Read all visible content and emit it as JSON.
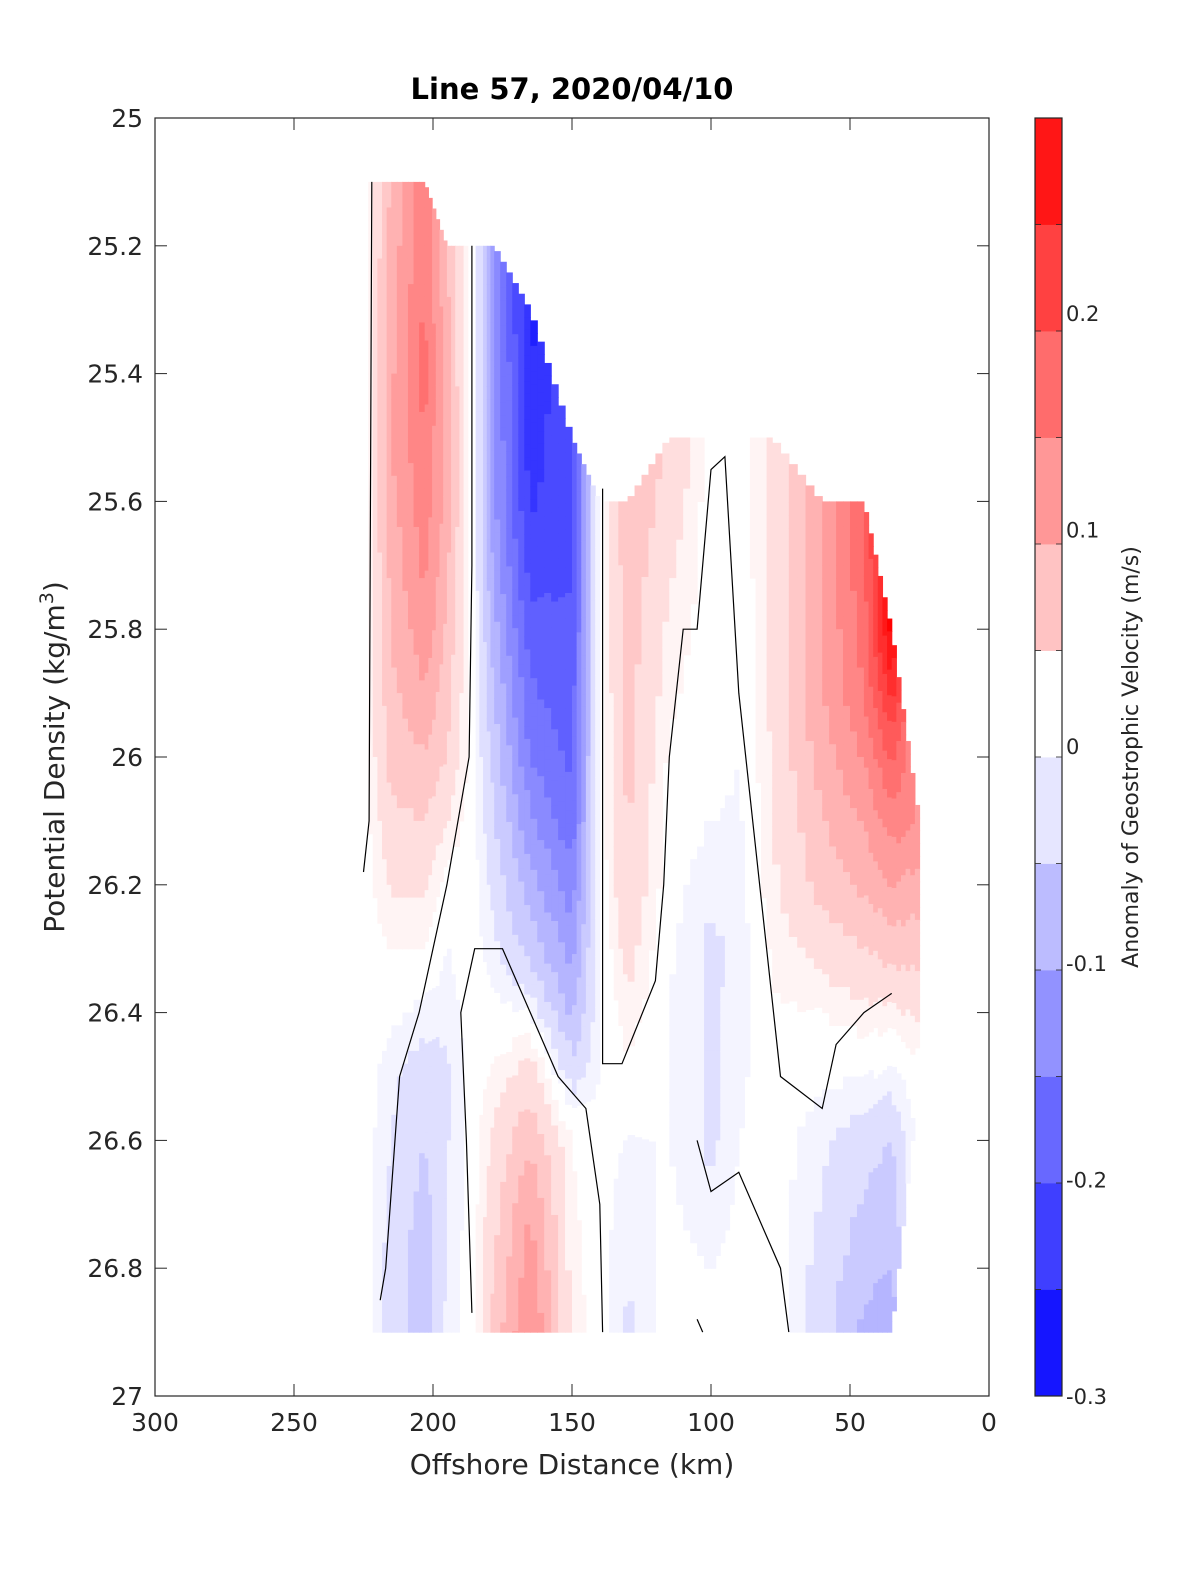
{
  "chart_data": {
    "type": "heatmap",
    "title": "Line 57, 2020/04/10",
    "xlabel": "Offshore Distance (km)",
    "ylabel_main": "Potential Density (kg/m",
    "ylabel_sup": "3",
    "ylabel_close": ")",
    "xlim": [
      300,
      0
    ],
    "ylim": [
      25,
      27
    ],
    "x_reversed": true,
    "y_reversed": true,
    "xticks": [
      300,
      250,
      200,
      150,
      100,
      50,
      0
    ],
    "xtick_labels": [
      "300",
      "250",
      "200",
      "150",
      "100",
      "50",
      "0"
    ],
    "yticks": [
      25,
      25.2,
      25.4,
      25.6,
      25.8,
      26,
      26.2,
      26.4,
      26.6,
      26.8,
      27
    ],
    "ytick_labels": [
      "25",
      "25.2",
      "25.4",
      "25.6",
      "25.8",
      "26",
      "26.2",
      "26.4",
      "26.6",
      "26.8",
      "27"
    ],
    "colorbar": {
      "label": "Anomaly of Geostrophic Velocity (m/s)",
      "min": -0.3,
      "max": 0.29,
      "ticks": [
        0.2,
        0.1,
        0,
        -0.1,
        -0.2,
        -0.3
      ],
      "tick_labels": [
        "0.2",
        "0.1",
        "0",
        "-0.1",
        "-0.2",
        "-0.3"
      ],
      "level_step": 0.025,
      "colormap": "blue-white-red",
      "color_negative": "#0000ff",
      "color_zero": "#ffffff",
      "color_positive": "#ff0000"
    },
    "columns": [
      {
        "x": 225,
        "top": 25.1,
        "bottom": 26.9,
        "cells": [
          [
            25.1,
            0
          ],
          [
            26.9,
            0
          ]
        ]
      },
      {
        "x": 215,
        "top": 25.1,
        "bottom": 26.9,
        "cells": [
          [
            25.1,
            0.08
          ],
          [
            25.5,
            0.1
          ],
          [
            26.0,
            0.06
          ],
          [
            26.3,
            0.01
          ],
          [
            26.5,
            -0.02
          ],
          [
            26.9,
            -0.04
          ]
        ]
      },
      {
        "x": 203,
        "top": 25.1,
        "bottom": 26.9,
        "cells": [
          [
            25.1,
            0.14
          ],
          [
            25.4,
            0.16
          ],
          [
            25.8,
            0.12
          ],
          [
            26.1,
            0.05
          ],
          [
            26.3,
            0.01
          ],
          [
            26.5,
            -0.04
          ],
          [
            26.8,
            -0.07
          ],
          [
            26.9,
            -0.06
          ]
        ]
      },
      {
        "x": 195,
        "top": 25.2,
        "bottom": 26.9,
        "cells": [
          [
            25.2,
            0.08
          ],
          [
            25.6,
            0.09
          ],
          [
            26.0,
            0.05
          ],
          [
            26.2,
            0.0
          ],
          [
            26.5,
            -0.03
          ],
          [
            26.9,
            -0.02
          ]
        ]
      },
      {
        "x": 186,
        "top": 25.2,
        "bottom": 26.9,
        "cells": [
          [
            25.2,
            0.0
          ],
          [
            26.0,
            0.0
          ],
          [
            26.6,
            0.0
          ],
          [
            26.9,
            0.0
          ]
        ]
      },
      {
        "x": 178,
        "top": 25.2,
        "bottom": 26.9,
        "cells": [
          [
            25.2,
            -0.12
          ],
          [
            25.6,
            -0.12
          ],
          [
            26.0,
            -0.06
          ],
          [
            26.3,
            -0.02
          ],
          [
            26.6,
            0.03
          ],
          [
            26.9,
            0.06
          ]
        ]
      },
      {
        "x": 165,
        "top": 25.3,
        "bottom": 26.9,
        "cells": [
          [
            25.3,
            -0.26
          ],
          [
            25.6,
            -0.23
          ],
          [
            26.0,
            -0.15
          ],
          [
            26.3,
            -0.06
          ],
          [
            26.5,
            0.04
          ],
          [
            26.7,
            0.1
          ],
          [
            26.9,
            0.13
          ]
        ]
      },
      {
        "x": 150,
        "top": 25.5,
        "bottom": 26.9,
        "cells": [
          [
            25.5,
            -0.2
          ],
          [
            25.8,
            -0.2
          ],
          [
            26.1,
            -0.17
          ],
          [
            26.4,
            -0.08
          ],
          [
            26.6,
            0.01
          ],
          [
            26.9,
            0.02
          ]
        ]
      },
      {
        "x": 140,
        "top": 25.6,
        "bottom": 26.9,
        "cells": [
          [
            25.6,
            0.0
          ],
          [
            26.0,
            0.0
          ],
          [
            26.4,
            -0.01
          ],
          [
            26.9,
            0.0
          ]
        ]
      },
      {
        "x": 130,
        "top": 25.6,
        "bottom": 26.9,
        "cells": [
          [
            25.6,
            0.07
          ],
          [
            25.9,
            0.06
          ],
          [
            26.2,
            0.05
          ],
          [
            26.4,
            0.02
          ],
          [
            26.6,
            -0.01
          ],
          [
            26.9,
            -0.03
          ]
        ]
      },
      {
        "x": 115,
        "top": 25.5,
        "bottom": 26.9,
        "cells": [
          [
            25.5,
            0.05
          ],
          [
            25.8,
            0.02
          ],
          [
            26.1,
            0.0
          ],
          [
            26.4,
            -0.01
          ],
          [
            26.6,
            -0.01
          ],
          [
            26.9,
            0.0
          ]
        ]
      },
      {
        "x": 100,
        "top": 25.5,
        "bottom": 26.9,
        "cells": [
          [
            25.5,
            0.0
          ],
          [
            26.0,
            0.0
          ],
          [
            26.3,
            -0.03
          ],
          [
            26.6,
            -0.03
          ],
          [
            26.9,
            0.0
          ]
        ]
      },
      {
        "x": 90,
        "top": 25.5,
        "bottom": 26.9,
        "cells": [
          [
            25.5,
            0.0
          ],
          [
            26.0,
            -0.01
          ],
          [
            26.3,
            -0.02
          ],
          [
            26.6,
            -0.01
          ],
          [
            26.9,
            0.0
          ]
        ]
      },
      {
        "x": 78,
        "top": 25.5,
        "bottom": 26.9,
        "cells": [
          [
            25.5,
            0.03
          ],
          [
            25.9,
            0.03
          ],
          [
            26.2,
            0.02
          ],
          [
            26.5,
            0.0
          ],
          [
            26.9,
            0.0
          ]
        ]
      },
      {
        "x": 60,
        "top": 25.6,
        "bottom": 26.9,
        "cells": [
          [
            25.6,
            0.1
          ],
          [
            25.9,
            0.1
          ],
          [
            26.2,
            0.06
          ],
          [
            26.4,
            0.01
          ],
          [
            26.6,
            -0.02
          ],
          [
            26.9,
            -0.04
          ]
        ]
      },
      {
        "x": 45,
        "top": 25.6,
        "bottom": 26.9,
        "cells": [
          [
            25.6,
            0.18
          ],
          [
            25.9,
            0.15
          ],
          [
            26.2,
            0.08
          ],
          [
            26.4,
            0.02
          ],
          [
            26.6,
            -0.04
          ],
          [
            26.9,
            -0.08
          ]
        ]
      },
      {
        "x": 35,
        "top": 25.8,
        "bottom": 26.9,
        "cells": [
          [
            25.8,
            0.29
          ],
          [
            26.0,
            0.18
          ],
          [
            26.2,
            0.1
          ],
          [
            26.4,
            0.02
          ],
          [
            26.6,
            -0.05
          ],
          [
            26.9,
            -0.09
          ]
        ]
      },
      {
        "x": 25,
        "top": 26.1,
        "bottom": 26.5,
        "cells": [
          [
            26.1,
            0.12
          ],
          [
            26.3,
            0.06
          ],
          [
            26.5,
            0.0
          ]
        ]
      }
    ],
    "zero_contours": [
      [
        [
          222,
          25.1
        ],
        [
          223,
          26.1
        ],
        [
          225,
          26.18
        ]
      ],
      [
        [
          186,
          25.2
        ],
        [
          186,
          25.7
        ],
        [
          187,
          26.0
        ],
        [
          195,
          26.2
        ],
        [
          205,
          26.4
        ],
        [
          212,
          26.5
        ],
        [
          217,
          26.8
        ],
        [
          219,
          26.85
        ]
      ],
      [
        [
          186,
          26.87
        ],
        [
          188,
          26.6
        ],
        [
          190,
          26.4
        ],
        [
          185,
          26.3
        ],
        [
          175,
          26.3
        ],
        [
          165,
          26.4
        ],
        [
          155,
          26.5
        ],
        [
          145,
          26.55
        ],
        [
          140,
          26.7
        ],
        [
          139,
          26.9
        ]
      ],
      [
        [
          139,
          25.58
        ],
        [
          139,
          26.2
        ],
        [
          139,
          26.48
        ],
        [
          132,
          26.48
        ],
        [
          120,
          26.35
        ],
        [
          117,
          26.2
        ],
        [
          115,
          26.0
        ],
        [
          110,
          25.8
        ],
        [
          105,
          25.8
        ],
        [
          100,
          25.55
        ],
        [
          95,
          25.53
        ],
        [
          90,
          25.9
        ],
        [
          85,
          26.1
        ],
        [
          80,
          26.3
        ],
        [
          75,
          26.5
        ],
        [
          60,
          26.55
        ],
        [
          55,
          26.45
        ],
        [
          45,
          26.4
        ],
        [
          35,
          26.37
        ]
      ],
      [
        [
          105,
          26.6
        ],
        [
          100,
          26.68
        ],
        [
          90,
          26.65
        ],
        [
          80,
          26.75
        ],
        [
          75,
          26.8
        ],
        [
          72,
          26.9
        ]
      ],
      [
        [
          105,
          26.88
        ],
        [
          103,
          26.9
        ]
      ]
    ]
  }
}
